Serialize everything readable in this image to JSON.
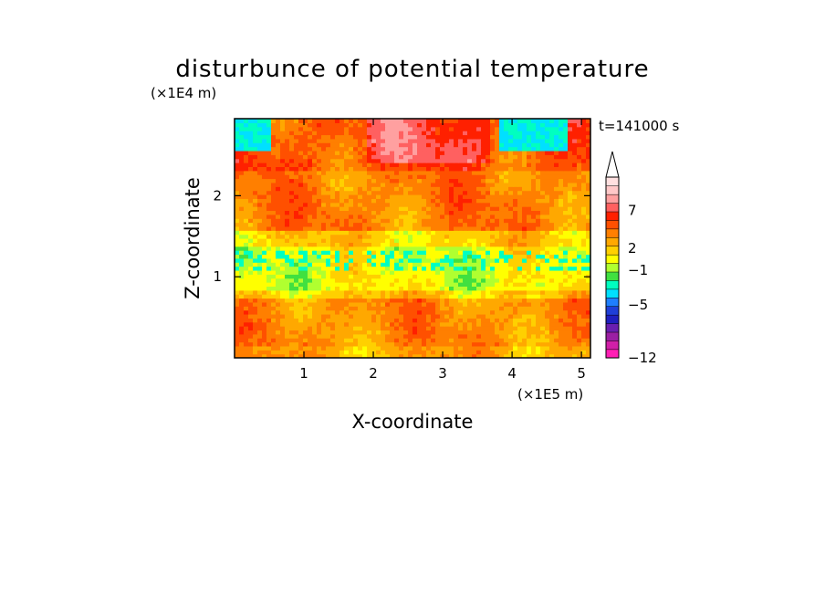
{
  "chart_data": {
    "type": "heatmap",
    "title": "disturbunce of potential temperature",
    "xlabel": "X-coordinate",
    "ylabel": "Z-coordinate",
    "x_multiplier": "(×1E5 m)",
    "y_multiplier": "(×1E4 m)",
    "time_label": "t=141000 s",
    "xlim": [
      0,
      5.13
    ],
    "ylim": [
      0,
      2.95
    ],
    "x_ticks": [
      1,
      2,
      3,
      4,
      5
    ],
    "y_ticks": [
      1,
      2
    ],
    "colorbar": {
      "tick_labels": [
        "7",
        "2",
        "−1",
        "−5",
        "−12"
      ],
      "levels": [
        -12,
        -11,
        -10,
        -9,
        -8,
        -7,
        -6,
        -5,
        -4,
        -3,
        -2,
        -1,
        0,
        1,
        2,
        3,
        4,
        5,
        6,
        7,
        8,
        9
      ],
      "colors": [
        "#ff1fb4",
        "#d11fa8",
        "#9b1fa3",
        "#6a1fb0",
        "#1f1fbf",
        "#1f3fd8",
        "#1f7fff",
        "#00e0ff",
        "#00ffc0",
        "#40e040",
        "#b0ff30",
        "#ffff00",
        "#ffd000",
        "#ffa800",
        "#ff7f00",
        "#ff5000",
        "#ff2000",
        "#ff6060",
        "#ffa0a0",
        "#ffc8c8",
        "#ffe0e0"
      ],
      "extend_top": true
    },
    "field_description_bands": [
      {
        "z_from": 0.0,
        "z_to": 0.15,
        "dominant": 0.5
      },
      {
        "z_from": 0.15,
        "z_to": 0.75,
        "dominant": 1.2
      },
      {
        "z_from": 0.75,
        "z_to": 0.85,
        "dominant": -0.3
      },
      {
        "z_from": 0.85,
        "z_to": 1.4,
        "dominant": -1.7
      },
      {
        "z_from": 1.4,
        "z_to": 1.55,
        "dominant": -0.5
      },
      {
        "z_from": 1.55,
        "z_to": 2.3,
        "dominant": 1.5
      },
      {
        "z_from": 2.3,
        "z_to": 2.95,
        "dominant": 2.5
      }
    ]
  }
}
